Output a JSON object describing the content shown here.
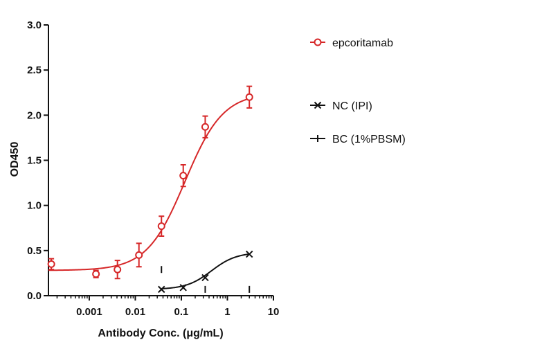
{
  "chart_data": {
    "type": "scatter",
    "title": "",
    "xlabel": "Antibody Conc. (μg/mL)",
    "ylabel": "OD450",
    "x_scale": "log",
    "xlim": [
      0.00013,
      10
    ],
    "ylim": [
      0,
      3.0
    ],
    "x_ticks": [
      0.001,
      0.01,
      0.1,
      1,
      10
    ],
    "x_tick_labels": [
      "0.001",
      "0.01",
      "0.1",
      "1",
      "10"
    ],
    "y_ticks": [
      0,
      0.5,
      1.0,
      1.5,
      2.0,
      2.5,
      3.0
    ],
    "y_tick_labels": [
      "0.0",
      "0.5",
      "1.0",
      "1.5",
      "2.0",
      "2.5",
      "3.0"
    ],
    "grid": false,
    "legend_position": "right",
    "series": [
      {
        "name": "epcoritamab",
        "color": "#d62728",
        "marker": "open-circle",
        "x": [
          0.00015,
          0.0014,
          0.0041,
          0.012,
          0.037,
          0.11,
          0.33,
          3.0
        ],
        "y": [
          0.35,
          0.24,
          0.29,
          0.45,
          0.77,
          1.33,
          1.87,
          2.2
        ],
        "error": [
          0.06,
          0.04,
          0.1,
          0.13,
          0.11,
          0.12,
          0.12,
          0.12
        ],
        "fit_curve": {
          "bottom": 0.28,
          "top": 2.25,
          "ec50": 0.12,
          "hill": 1.05
        }
      },
      {
        "name": "NC (IPI)",
        "color": "#111111",
        "marker": "x",
        "x": [
          0.037,
          0.11,
          0.33,
          3.0
        ],
        "y": [
          0.07,
          0.09,
          0.2,
          0.46
        ],
        "fit_curve": {
          "bottom": 0.07,
          "top": 0.48,
          "ec50": 0.45,
          "hill": 1.6
        }
      },
      {
        "name": "BC (1%PBSM)",
        "color": "#111111",
        "marker": "vertical-tick",
        "x": [
          0.037,
          0.33,
          3.0
        ],
        "y": [
          0.29,
          0.07,
          0.07
        ]
      }
    ]
  }
}
